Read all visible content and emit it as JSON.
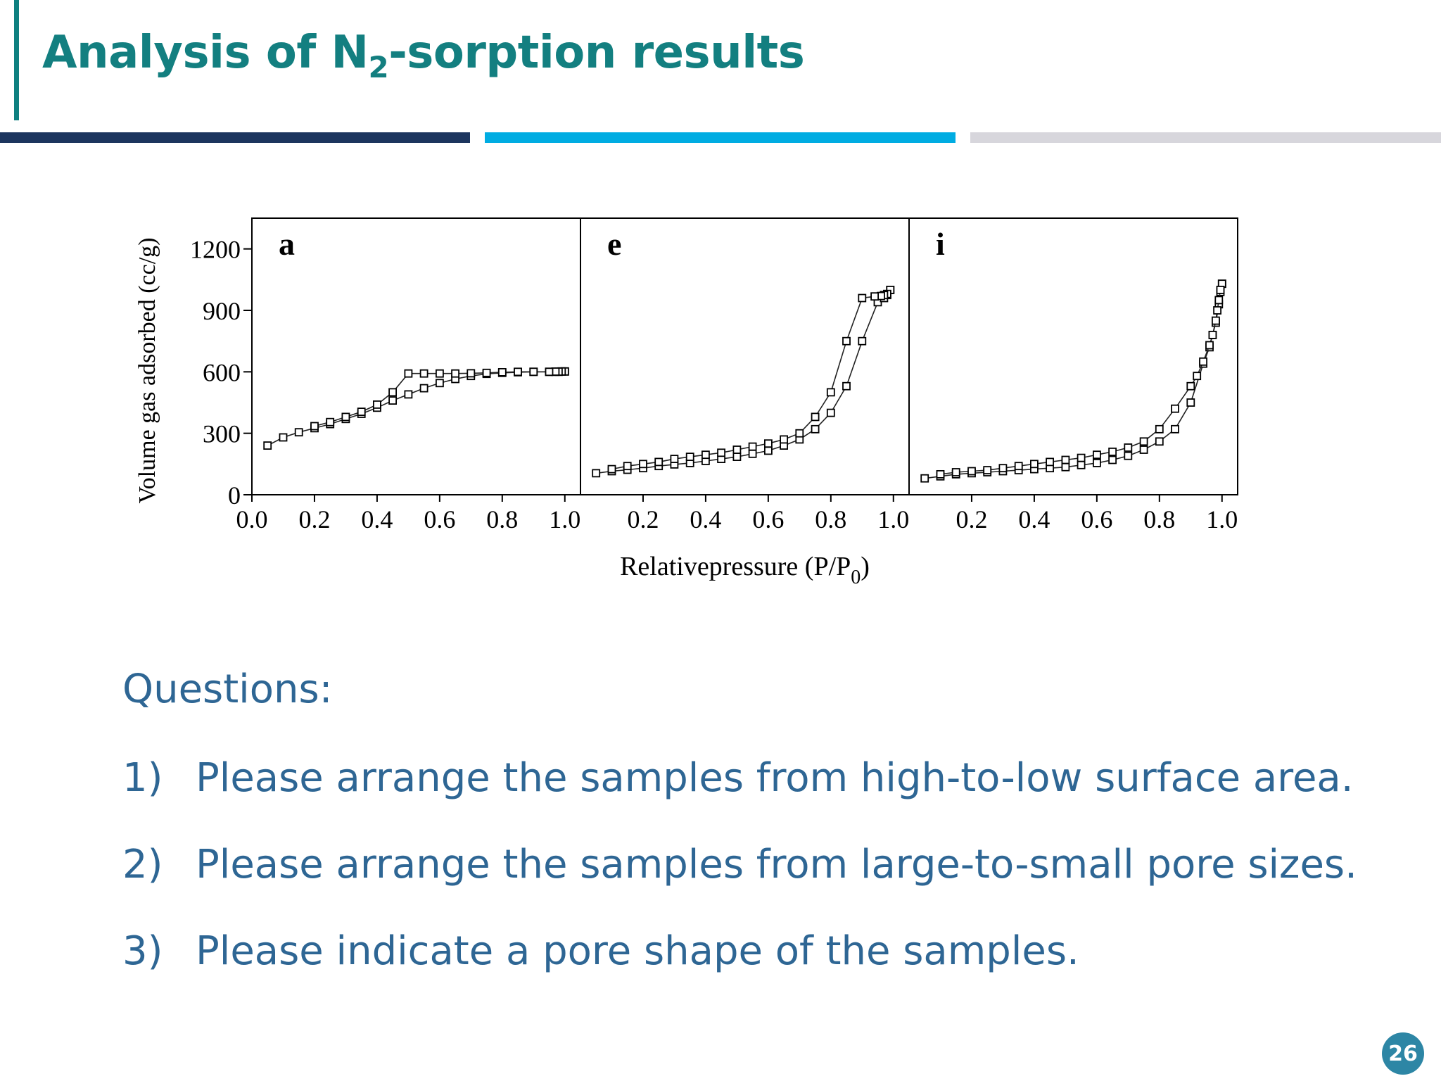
{
  "slide": {
    "title_main": "Analysis of N",
    "title_sub": "2",
    "title_rest": "-sorption results",
    "page_number": "26"
  },
  "questions": {
    "heading": "Questions:",
    "items": [
      {
        "num": "1)",
        "text": "Please arrange the samples from high-to-low surface area."
      },
      {
        "num": "2)",
        "text": "Please arrange the samples from large-to-small pore sizes."
      },
      {
        "num": "3)",
        "text": "Please indicate a pore shape of the samples."
      }
    ]
  },
  "chart_data": {
    "type": "line",
    "ylabel": "Volume gas adsorbed (cc/g)",
    "xlabel": "Relativepressure (P/P",
    "xlabel_sub": "0",
    "xlabel_close": ")",
    "ylim": [
      0,
      1350
    ],
    "yticks": [
      0,
      300,
      600,
      900,
      1200
    ],
    "xlim": [
      0.0,
      1.05
    ],
    "grid": false,
    "marker": "open-square",
    "panels": [
      {
        "label": "a",
        "xticks": [
          "0.0",
          "0.2",
          "0.4",
          "0.6",
          "0.8",
          "1.0"
        ],
        "series": [
          {
            "branch": "adsorption",
            "x": [
              0.05,
              0.1,
              0.15,
              0.2,
              0.25,
              0.3,
              0.35,
              0.4,
              0.45,
              0.5,
              0.55,
              0.6,
              0.65,
              0.7,
              0.75,
              0.8,
              0.85,
              0.9,
              0.95,
              0.97,
              0.98,
              0.99,
              1.0
            ],
            "y": [
              240,
              280,
              305,
              325,
              345,
              370,
              395,
              425,
              460,
              490,
              520,
              545,
              565,
              580,
              590,
              595,
              598,
              600,
              600,
              600,
              600,
              602,
              602
            ]
          },
          {
            "branch": "desorption",
            "x": [
              1.0,
              0.99,
              0.98,
              0.97,
              0.95,
              0.9,
              0.85,
              0.8,
              0.75,
              0.7,
              0.65,
              0.6,
              0.55,
              0.5,
              0.45,
              0.4,
              0.35,
              0.3,
              0.25,
              0.2
            ],
            "y": [
              602,
              602,
              601,
              601,
              600,
              600,
              600,
              598,
              595,
              593,
              592,
              592,
              592,
              592,
              500,
              440,
              405,
              380,
              355,
              335
            ]
          }
        ]
      },
      {
        "label": "e",
        "xticks": [
          "0.2",
          "0.4",
          "0.6",
          "0.8",
          "1.0"
        ],
        "series": [
          {
            "branch": "adsorption",
            "x": [
              0.05,
              0.1,
              0.15,
              0.2,
              0.25,
              0.3,
              0.35,
              0.4,
              0.45,
              0.5,
              0.55,
              0.6,
              0.65,
              0.7,
              0.75,
              0.8,
              0.85,
              0.9,
              0.95,
              0.97,
              0.98,
              0.99
            ],
            "y": [
              105,
              115,
              122,
              130,
              140,
              148,
              155,
              165,
              175,
              185,
              200,
              215,
              240,
              270,
              320,
              400,
              530,
              750,
              940,
              960,
              975,
              1000
            ]
          },
          {
            "branch": "desorption",
            "x": [
              0.99,
              0.98,
              0.97,
              0.96,
              0.94,
              0.9,
              0.85,
              0.8,
              0.75,
              0.7,
              0.65,
              0.6,
              0.55,
              0.5,
              0.45,
              0.4,
              0.35,
              0.3,
              0.25,
              0.2,
              0.15,
              0.1
            ],
            "y": [
              1000,
              980,
              975,
              970,
              968,
              960,
              750,
              500,
              380,
              300,
              270,
              250,
              235,
              220,
              205,
              195,
              185,
              175,
              160,
              150,
              140,
              125
            ]
          }
        ]
      },
      {
        "label": "i",
        "xticks": [
          "0.2",
          "0.4",
          "0.6",
          "0.8",
          "1.0"
        ],
        "series": [
          {
            "branch": "adsorption",
            "x": [
              0.05,
              0.1,
              0.15,
              0.2,
              0.25,
              0.3,
              0.35,
              0.4,
              0.45,
              0.5,
              0.55,
              0.6,
              0.65,
              0.7,
              0.75,
              0.8,
              0.85,
              0.9,
              0.94,
              0.96,
              0.97,
              0.98,
              0.99,
              0.995,
              1.0
            ],
            "y": [
              80,
              90,
              100,
              105,
              110,
              115,
              120,
              125,
              130,
              135,
              145,
              155,
              170,
              190,
              220,
              260,
              320,
              450,
              640,
              720,
              780,
              840,
              930,
              990,
              1030
            ]
          },
          {
            "branch": "desorption",
            "x": [
              1.0,
              0.995,
              0.99,
              0.985,
              0.98,
              0.97,
              0.96,
              0.94,
              0.92,
              0.9,
              0.85,
              0.8,
              0.75,
              0.7,
              0.65,
              0.6,
              0.55,
              0.5,
              0.45,
              0.4,
              0.35,
              0.3,
              0.25,
              0.2,
              0.15,
              0.1
            ],
            "y": [
              1030,
              1000,
              950,
              900,
              850,
              780,
              730,
              650,
              580,
              530,
              420,
              320,
              260,
              230,
              210,
              195,
              180,
              170,
              160,
              150,
              140,
              130,
              120,
              115,
              110,
              100
            ]
          }
        ]
      }
    ]
  }
}
